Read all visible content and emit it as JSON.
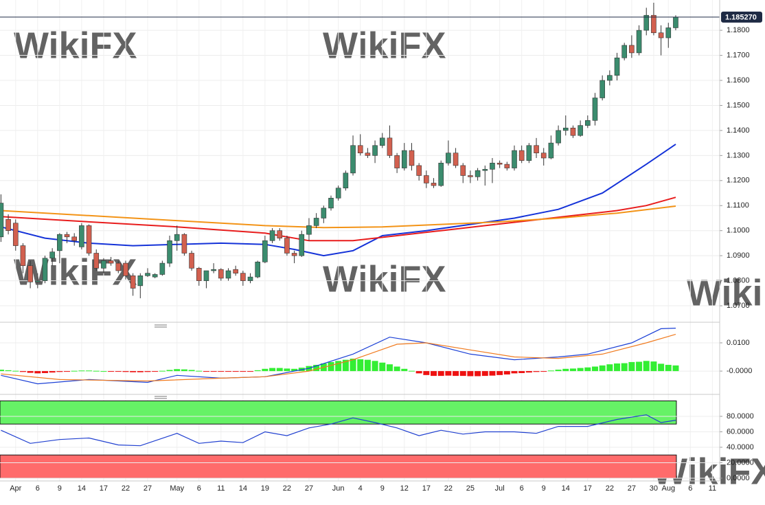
{
  "chart_data": [
    {
      "type": "candlestick",
      "last_price": {
        "value": 1.18527,
        "label": "1.185270"
      },
      "up_color": "#3b8c6e",
      "down_color": "#d2604f",
      "last_price_color": "#1e2a44",
      "ylim": [
        1.0637,
        1.1921
      ],
      "yticks": [
        {
          "value": 1.18,
          "label": "1.1800"
        },
        {
          "value": 1.17,
          "label": "1.1700"
        },
        {
          "value": 1.16,
          "label": "1.1600"
        },
        {
          "value": 1.15,
          "label": "1.1500"
        },
        {
          "value": 1.14,
          "label": "1.1400"
        },
        {
          "value": 1.13,
          "label": "1.1300"
        },
        {
          "value": 1.12,
          "label": "1.1200"
        },
        {
          "value": 1.11,
          "label": "1.1100"
        },
        {
          "value": 1.1,
          "label": "1.1000"
        },
        {
          "value": 1.09,
          "label": "1.0900"
        },
        {
          "value": 1.08,
          "label": "1.0800"
        },
        {
          "value": 1.07,
          "label": "1.0700"
        }
      ],
      "grid": true,
      "open": [
        1.0975,
        1.1045,
        1.103,
        1.094,
        1.086,
        1.0795,
        1.08,
        1.089,
        1.092,
        1.0985,
        1.0975,
        1.0935,
        1.102,
        1.091,
        1.085,
        1.088,
        1.087,
        1.087,
        1.082,
        1.078,
        1.082,
        1.0815,
        1.0825,
        1.087,
        1.096,
        1.0985,
        1.091,
        1.085,
        1.08,
        1.084,
        1.0845,
        1.081,
        1.0845,
        1.083,
        1.08,
        1.0815,
        1.0875,
        1.096,
        1.1,
        1.097,
        1.091,
        1.09,
        1.0985,
        1.102,
        1.105,
        1.109,
        1.113,
        1.117,
        1.123,
        1.134,
        1.131,
        1.13,
        1.134,
        1.137,
        1.13,
        1.125,
        1.132,
        1.126,
        1.122,
        1.119,
        1.118,
        1.127,
        1.131,
        1.126,
        1.122,
        1.1215,
        1.124,
        1.1245,
        1.127,
        1.1265,
        1.125,
        1.132,
        1.128,
        1.134,
        1.131,
        1.129,
        1.135,
        1.14,
        1.141,
        1.138,
        1.142,
        1.144,
        1.153,
        1.16,
        1.162,
        1.169,
        1.174,
        1.171,
        1.18,
        1.186,
        1.179,
        1.177,
        1.181
      ],
      "high": [
        1.1145,
        1.1065,
        1.1045,
        1.095,
        1.088,
        1.083,
        1.09,
        1.093,
        1.099,
        1.0995,
        1.099,
        1.103,
        1.1025,
        1.0925,
        1.089,
        1.0895,
        1.088,
        1.088,
        1.083,
        1.083,
        1.085,
        1.083,
        1.088,
        1.098,
        1.102,
        1.099,
        1.092,
        1.0855,
        1.084,
        1.087,
        1.085,
        1.085,
        1.086,
        1.084,
        1.083,
        1.088,
        1.098,
        1.101,
        1.101,
        1.098,
        1.092,
        1.1,
        1.105,
        1.107,
        1.11,
        1.114,
        1.118,
        1.124,
        1.138,
        1.1385,
        1.133,
        1.136,
        1.139,
        1.142,
        1.131,
        1.135,
        1.135,
        1.127,
        1.124,
        1.121,
        1.128,
        1.136,
        1.133,
        1.127,
        1.124,
        1.125,
        1.126,
        1.129,
        1.128,
        1.1275,
        1.134,
        1.134,
        1.135,
        1.137,
        1.133,
        1.138,
        1.142,
        1.146,
        1.142,
        1.144,
        1.146,
        1.155,
        1.162,
        1.164,
        1.171,
        1.175,
        1.178,
        1.182,
        1.189,
        1.191,
        1.182,
        1.183,
        1.186
      ],
      "low": [
        1.0955,
        1.0985,
        1.092,
        1.083,
        1.077,
        1.077,
        1.079,
        1.086,
        1.087,
        1.095,
        1.094,
        1.0925,
        1.09,
        1.084,
        1.083,
        1.086,
        1.083,
        1.0805,
        1.074,
        1.073,
        1.0815,
        1.081,
        1.082,
        1.0855,
        1.092,
        1.09,
        1.084,
        1.078,
        1.077,
        1.083,
        1.08,
        1.08,
        1.082,
        1.078,
        1.079,
        1.081,
        1.087,
        1.095,
        1.096,
        1.09,
        1.087,
        1.0895,
        1.096,
        1.101,
        1.103,
        1.108,
        1.112,
        1.116,
        1.122,
        1.13,
        1.129,
        1.127,
        1.133,
        1.129,
        1.123,
        1.124,
        1.124,
        1.12,
        1.117,
        1.117,
        1.1175,
        1.126,
        1.125,
        1.119,
        1.119,
        1.12,
        1.118,
        1.119,
        1.125,
        1.124,
        1.124,
        1.127,
        1.127,
        1.129,
        1.126,
        1.1285,
        1.134,
        1.138,
        1.137,
        1.1375,
        1.141,
        1.142,
        1.152,
        1.158,
        1.16,
        1.168,
        1.169,
        1.17,
        1.178,
        1.178,
        1.17,
        1.173,
        1.18
      ],
      "close": [
        1.111,
        1.1,
        1.094,
        1.086,
        1.0795,
        1.08,
        1.089,
        1.0915,
        1.0985,
        1.0975,
        1.096,
        1.102,
        1.091,
        1.085,
        1.088,
        1.087,
        1.084,
        1.082,
        1.077,
        1.082,
        1.083,
        1.0825,
        1.087,
        1.096,
        1.0985,
        1.091,
        1.085,
        1.08,
        1.084,
        1.0845,
        1.081,
        1.084,
        1.083,
        1.08,
        1.0815,
        1.0875,
        1.096,
        1.1,
        1.097,
        1.091,
        1.09,
        1.0985,
        1.102,
        1.105,
        1.109,
        1.113,
        1.117,
        1.123,
        1.134,
        1.131,
        1.13,
        1.134,
        1.137,
        1.13,
        1.125,
        1.132,
        1.126,
        1.122,
        1.119,
        1.118,
        1.127,
        1.131,
        1.126,
        1.122,
        1.1215,
        1.124,
        1.1245,
        1.127,
        1.1265,
        1.125,
        1.132,
        1.128,
        1.134,
        1.131,
        1.129,
        1.135,
        1.14,
        1.141,
        1.138,
        1.142,
        1.144,
        1.153,
        1.16,
        1.162,
        1.169,
        1.174,
        1.171,
        1.18,
        1.186,
        1.179,
        1.177,
        1.181,
        1.1853
      ],
      "series": [
        {
          "color": "#1432d8",
          "x": [
            0,
            6,
            12,
            18,
            24,
            30,
            36,
            40,
            44,
            48,
            52,
            58,
            64,
            70,
            76,
            82,
            88,
            92
          ],
          "values": [
            1.1015,
            1.097,
            1.095,
            1.094,
            1.0945,
            1.095,
            1.0945,
            1.0925,
            1.09,
            1.092,
            1.098,
            1.1,
            1.1025,
            1.105,
            1.1085,
            1.115,
            1.1265,
            1.1345
          ]
        },
        {
          "color": "#e81c1c",
          "x": [
            0,
            12,
            24,
            36,
            42,
            48,
            54,
            60,
            66,
            72,
            78,
            84,
            88,
            92
          ],
          "values": [
            1.1056,
            1.1035,
            1.1015,
            1.099,
            1.096,
            1.096,
            1.098,
            1.1,
            1.102,
            1.104,
            1.106,
            1.108,
            1.11,
            1.1133
          ]
        },
        {
          "color": "#f39316",
          "x": [
            0,
            12,
            24,
            36,
            44,
            52,
            60,
            68,
            76,
            84,
            92
          ],
          "values": [
            1.108,
            1.106,
            1.104,
            1.102,
            1.1012,
            1.1015,
            1.1025,
            1.1035,
            1.105,
            1.107,
            1.1098
          ]
        }
      ],
      "watermark": "WikiFX"
    },
    {
      "type": "macd",
      "ylim": [
        -0.008,
        0.0151
      ],
      "yticks": [
        {
          "value": 0.01,
          "label": "0.0100"
        },
        {
          "value": 0,
          "label": "-0.0000"
        }
      ],
      "positive_color": "#33ee33",
      "negative_color": "#ee1111",
      "histogram": [
        0.0005,
        0.0003,
        0.0001,
        -0.0003,
        -0.0006,
        -0.0008,
        -0.0007,
        -0.0005,
        -0.0003,
        -0.0001,
        0.0001,
        0.0002,
        0.0002,
        0.0001,
        0,
        -0.0001,
        -0.0002,
        -0.0003,
        -0.0004,
        -0.0004,
        -0.0003,
        -0.0001,
        0.0001,
        0.0004,
        0.0007,
        0.0006,
        0.0004,
        0.0001,
        -0.0001,
        -0.0002,
        -0.0002,
        -0.0002,
        -0.0002,
        -0.0002,
        -0.0001,
        0.0003,
        0.0008,
        0.0011,
        0.0011,
        0.0009,
        0.0008,
        0.0012,
        0.0018,
        0.0022,
        0.0027,
        0.0032,
        0.0036,
        0.004,
        0.0044,
        0.0042,
        0.004,
        0.0036,
        0.003,
        0.0024,
        0.0016,
        0.0008,
        0.0001,
        -0.0008,
        -0.0014,
        -0.0017,
        -0.0017,
        -0.0016,
        -0.0017,
        -0.0017,
        -0.0018,
        -0.0018,
        -0.0017,
        -0.0016,
        -0.0014,
        -0.0012,
        -0.0008,
        -0.0007,
        -0.0005,
        -0.0003,
        -0.0002,
        0.0002,
        0.0005,
        0.0008,
        0.0009,
        0.0011,
        0.0013,
        0.0016,
        0.002,
        0.0024,
        0.0027,
        0.0028,
        0.0032,
        0.0033,
        0.0036,
        0.0034,
        0.0026,
        0.0022,
        0.002
      ],
      "series": [
        {
          "color": "#1a3fd6",
          "x": [
            0,
            5,
            12,
            20,
            24,
            30,
            36,
            42,
            48,
            53,
            58,
            64,
            70,
            76,
            80,
            86,
            90,
            92
          ],
          "values": [
            -0.0015,
            -0.0045,
            -0.003,
            -0.004,
            -0.0015,
            -0.0025,
            -0.002,
            0.001,
            0.006,
            0.012,
            0.01,
            0.006,
            0.004,
            0.005,
            0.006,
            0.01,
            0.015,
            0.0152
          ]
        },
        {
          "color": "#f07a1e",
          "x": [
            0,
            8,
            20,
            30,
            36,
            42,
            48,
            54,
            58,
            64,
            70,
            76,
            82,
            88,
            92
          ],
          "values": [
            -0.001,
            -0.003,
            -0.0035,
            -0.0025,
            -0.002,
            0,
            0.004,
            0.0095,
            0.01,
            0.0075,
            0.005,
            0.0045,
            0.006,
            0.01,
            0.013
          ]
        }
      ]
    },
    {
      "type": "rsi",
      "ylim": [
        -3.6,
        100.4
      ],
      "yticks": [
        {
          "value": 80,
          "label": "80.0000"
        },
        {
          "value": 60,
          "label": "60.0000"
        },
        {
          "value": 40,
          "label": "40.0000"
        },
        {
          "value": 20,
          "label": "20.0000"
        },
        {
          "value": 0,
          "label": "0.0000"
        }
      ],
      "bands": [
        {
          "from": 70,
          "to": 100,
          "color": "#66f266"
        },
        {
          "from": 0,
          "to": 30,
          "color": "#ff6b6b"
        }
      ],
      "series": [
        {
          "color": "#1f3fd0",
          "x": [
            0,
            4,
            8,
            12,
            16,
            19,
            24,
            27,
            30,
            33,
            36,
            39,
            42,
            45,
            48,
            51,
            54,
            57,
            60,
            63,
            66,
            70,
            73,
            76,
            80,
            84,
            88,
            90,
            92
          ],
          "values": [
            62,
            45,
            50,
            52,
            43,
            42,
            58,
            45,
            48,
            46,
            60,
            55,
            65,
            70,
            78,
            72,
            65,
            55,
            62,
            57,
            60,
            60,
            58,
            67,
            67,
            76,
            82,
            72,
            75
          ]
        }
      ],
      "categories": [
        null,
        null,
        "Apr",
        null,
        null,
        "6",
        null,
        null,
        "9",
        null,
        null,
        "14",
        null,
        null,
        "17",
        null,
        null,
        "22",
        null,
        null,
        "27",
        null,
        null,
        null,
        "May",
        null,
        null,
        "6",
        null,
        null,
        "11",
        null,
        null,
        "14",
        null,
        null,
        "19",
        null,
        null,
        "22",
        null,
        null,
        "27",
        null,
        null,
        null,
        "Jun",
        null,
        null,
        "4",
        null,
        null,
        "9",
        null,
        null,
        "12",
        null,
        null,
        "17",
        null,
        null,
        "22",
        null,
        null,
        "25",
        null,
        null,
        null,
        "Jul",
        null,
        null,
        "6",
        null,
        null,
        "9",
        null,
        null,
        "14",
        null,
        null,
        "17",
        null,
        null,
        "22",
        null,
        null,
        "27",
        null,
        null,
        "30",
        null,
        "Aug",
        null,
        null,
        "6",
        null,
        null,
        "11"
      ]
    }
  ]
}
